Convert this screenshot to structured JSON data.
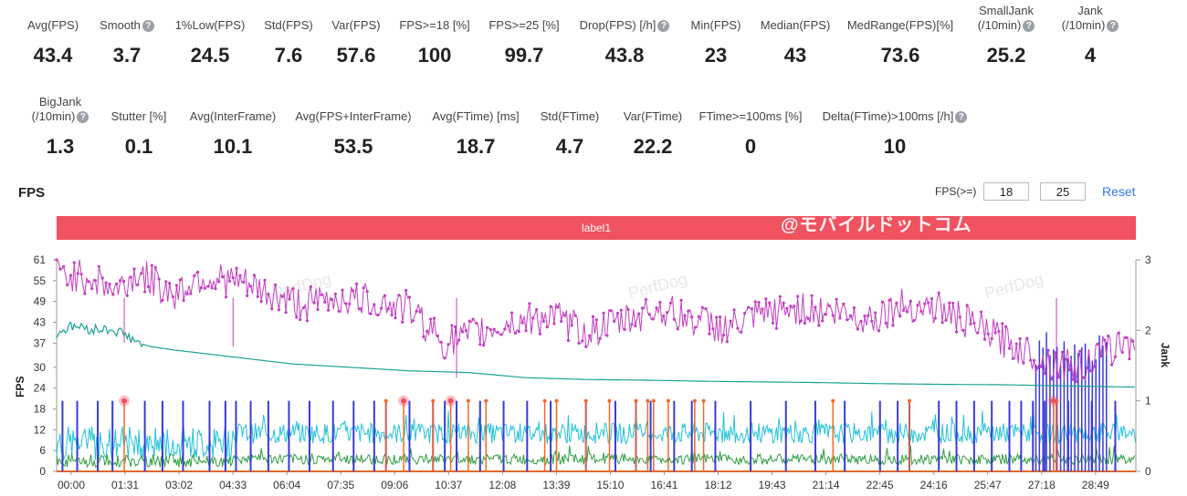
{
  "stats_row1": [
    {
      "label": "Avg(FPS)",
      "value": "43.4",
      "help": false
    },
    {
      "label": "Smooth",
      "value": "3.7",
      "help": true
    },
    {
      "label": "1%Low(FPS)",
      "value": "24.5",
      "help": false
    },
    {
      "label": "Std(FPS)",
      "value": "7.6",
      "help": false
    },
    {
      "label": "Var(FPS)",
      "value": "57.6",
      "help": false
    },
    {
      "label": "FPS>=18 [%]",
      "value": "100",
      "help": false
    },
    {
      "label": "FPS>=25 [%]",
      "value": "99.7",
      "help": false
    },
    {
      "label": "Drop(FPS) [/h]",
      "value": "43.8",
      "help": true
    },
    {
      "label": "Min(FPS)",
      "value": "23",
      "help": false
    },
    {
      "label": "Median(FPS)",
      "value": "43",
      "help": false
    },
    {
      "label": "MedRange(FPS)[%]",
      "value": "73.6",
      "help": false
    },
    {
      "label": "SmallJank",
      "label2": "(/10min)",
      "value": "25.2",
      "help": true
    },
    {
      "label": "Jank",
      "label2": "(/10min)",
      "value": "4",
      "help": true
    }
  ],
  "stats_row2": [
    {
      "label": "BigJank",
      "label2": "(/10min)",
      "value": "1.3",
      "help": true
    },
    {
      "label": "Stutter [%]",
      "value": "0.1",
      "help": false
    },
    {
      "label": "Avg(InterFrame)",
      "value": "10.1",
      "help": false
    },
    {
      "label": "Avg(FPS+InterFrame)",
      "value": "53.5",
      "help": false
    },
    {
      "label": "Avg(FTime) [ms]",
      "value": "18.7",
      "help": false
    },
    {
      "label": "Std(FTime)",
      "value": "4.7",
      "help": false
    },
    {
      "label": "Var(FTime)",
      "value": "22.2",
      "help": false
    },
    {
      "label": "FTime>=100ms [%]",
      "value": "0",
      "help": false
    },
    {
      "label": "Delta(FTime)>100ms [/h]",
      "value": "10",
      "help": true
    }
  ],
  "help_icon": "?",
  "chart_section": {
    "title": "FPS",
    "threshold_label": "FPS(>=)",
    "threshold_1": "18",
    "threshold_2": "25",
    "reset_label": "Reset",
    "band_label": "label1",
    "brand_watermark": "@モバイルドットコム",
    "watermark": "PerfDog"
  },
  "colors": {
    "fps": "#c23fc2",
    "avg_fps": "#1aa393",
    "cyan": "#22c3d8",
    "green": "#2e9e3e",
    "jank": "#3a3ad6",
    "bigjank": "#ef6a2a",
    "band": "#f0525f"
  },
  "chart_data": {
    "type": "line",
    "ylabel": "FPS",
    "y2label": "Jank",
    "ylim": [
      0,
      61
    ],
    "y2lim": [
      0,
      3
    ],
    "yticks": [
      0,
      6,
      12,
      18,
      24,
      30,
      37,
      43,
      49,
      55,
      61
    ],
    "y2ticks": [
      0,
      1,
      2,
      3
    ],
    "xticks": [
      "00:00",
      "01:31",
      "03:02",
      "04:33",
      "06:04",
      "07:35",
      "09:06",
      "10:37",
      "12:08",
      "13:39",
      "15:10",
      "16:41",
      "18:12",
      "19:43",
      "21:14",
      "22:45",
      "24:16",
      "25:47",
      "27:18",
      "28:49"
    ],
    "x_range_seconds": [
      0,
      1835
    ],
    "fps_series": {
      "name": "FPS",
      "x_seconds": [
        0,
        60,
        100,
        140,
        200,
        240,
        300,
        360,
        420,
        480,
        540,
        600,
        660,
        720,
        780,
        840,
        900,
        960,
        1020,
        1080,
        1140,
        1200,
        1260,
        1320,
        1380,
        1440,
        1500,
        1560,
        1620,
        1680,
        1740,
        1800,
        1835
      ],
      "values": [
        57,
        56,
        52,
        57,
        51,
        56,
        55,
        51,
        48,
        50,
        49,
        47,
        37,
        40,
        43,
        45,
        40,
        43,
        47,
        44,
        41,
        45,
        47,
        46,
        44,
        48,
        47,
        42,
        37,
        32,
        30,
        36,
        38
      ]
    },
    "avg_fps_series": {
      "name": "Avg(FPS)",
      "x_seconds": [
        0,
        30,
        60,
        90,
        110,
        140,
        160,
        200,
        300,
        400,
        500,
        600,
        700,
        800,
        900,
        1000,
        1100,
        1200,
        1300,
        1400,
        1500,
        1600,
        1700,
        1835
      ],
      "values": [
        40,
        42,
        41,
        41,
        40,
        37,
        36,
        35,
        33,
        31,
        30,
        29,
        28.5,
        27,
        26.5,
        26.3,
        26,
        25.8,
        25.6,
        25.3,
        25.1,
        25,
        24.7,
        24.3
      ]
    },
    "jank_series_x_seconds": [
      10,
      35,
      70,
      95,
      150,
      180,
      215,
      260,
      287,
      305,
      330,
      360,
      395,
      430,
      470,
      505,
      540,
      560,
      600,
      640,
      660,
      680,
      720,
      760,
      800,
      840,
      900,
      950,
      985,
      1010,
      1050,
      1080,
      1120,
      1180,
      1240,
      1290,
      1340,
      1400,
      1430,
      1450,
      1500,
      1530,
      1560,
      1590,
      1620,
      1640,
      1660,
      1680,
      1700,
      1720,
      1760,
      1800
    ],
    "bigjank_x_seconds": [
      115,
      590,
      670,
      1695
    ]
  }
}
